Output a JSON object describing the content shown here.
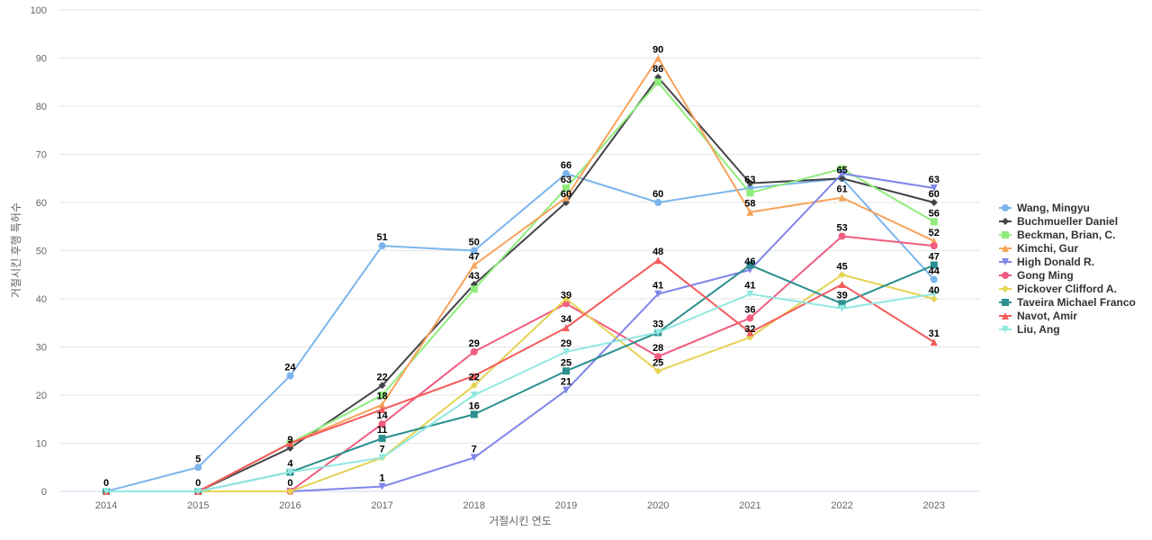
{
  "chart_data": {
    "type": "line",
    "xlabel": "거절시킨 연도",
    "ylabel": "거절시킨 후행 특허수",
    "ylim": [
      0,
      100
    ],
    "yticks": [
      0,
      10,
      20,
      30,
      40,
      50,
      60,
      70,
      80,
      90,
      100
    ],
    "grid": true,
    "legend_position": "right",
    "x": [
      "2014",
      "2015",
      "2016",
      "2017",
      "2018",
      "2019",
      "2020",
      "2021",
      "2022",
      "2023"
    ],
    "series": [
      {
        "name": "Wang, Mingyu",
        "color": "#7cb5ec",
        "marker": "circle",
        "values": [
          0,
          5,
          24,
          51,
          50,
          66,
          60,
          63,
          65,
          44
        ]
      },
      {
        "name": "Buchmueller Daniel",
        "color": "#434348",
        "marker": "diamond",
        "values": [
          0,
          0,
          9,
          22,
          43,
          60,
          86,
          64,
          65,
          60
        ]
      },
      {
        "name": "Beckman, Brian, C.",
        "color": "#90ed7d",
        "marker": "square",
        "values": [
          0,
          0,
          10,
          20,
          42,
          63,
          85,
          62,
          67,
          56
        ]
      },
      {
        "name": "Kimchi, Gur",
        "color": "#f7a35c",
        "marker": "triangle",
        "values": [
          0,
          0,
          10,
          18,
          47,
          61,
          90,
          58,
          61,
          52
        ]
      },
      {
        "name": "High Donald R.",
        "color": "#8085e9",
        "marker": "triangle-down",
        "values": [
          0,
          0,
          0,
          1,
          7,
          21,
          41,
          46,
          66,
          63
        ]
      },
      {
        "name": "Gong Ming",
        "color": "#f15c80",
        "marker": "circle",
        "values": [
          0,
          0,
          0,
          14,
          29,
          39,
          28,
          36,
          53,
          51
        ]
      },
      {
        "name": "Pickover Clifford A.",
        "color": "#e4d354",
        "marker": "diamond",
        "values": [
          0,
          0,
          0,
          7,
          22,
          40,
          25,
          32,
          45,
          40
        ]
      },
      {
        "name": "Taveira Michael Franco",
        "color": "#2b908f",
        "marker": "square",
        "values": [
          0,
          0,
          4,
          11,
          16,
          25,
          33,
          47,
          39,
          47
        ]
      },
      {
        "name": "Navot, Amir",
        "color": "#f45b5b",
        "marker": "triangle",
        "values": [
          0,
          0,
          10,
          17,
          24,
          34,
          48,
          33,
          43,
          31
        ]
      },
      {
        "name": "Liu, Ang",
        "color": "#91e8e1",
        "marker": "triangle-down",
        "values": [
          0,
          0,
          4,
          7,
          20,
          29,
          33,
          41,
          38,
          41
        ]
      }
    ],
    "data_labels": [
      {
        "x": "2014",
        "text": "0",
        "value": 0
      },
      {
        "x": "2015",
        "text": "5",
        "value": 5
      },
      {
        "x": "2015",
        "text": "0",
        "value": 0
      },
      {
        "x": "2016",
        "text": "24",
        "value": 24
      },
      {
        "x": "2016",
        "text": "9",
        "value": 9
      },
      {
        "x": "2016",
        "text": "4",
        "value": 4
      },
      {
        "x": "2016",
        "text": "0",
        "value": 0
      },
      {
        "x": "2017",
        "text": "51",
        "value": 51
      },
      {
        "x": "2017",
        "text": "22",
        "value": 22
      },
      {
        "x": "2017",
        "text": "18",
        "value": 18
      },
      {
        "x": "2017",
        "text": "14",
        "value": 14
      },
      {
        "x": "2017",
        "text": "11",
        "value": 11
      },
      {
        "x": "2017",
        "text": "7",
        "value": 7
      },
      {
        "x": "2017",
        "text": "1",
        "value": 1
      },
      {
        "x": "2018",
        "text": "50",
        "value": 50
      },
      {
        "x": "2018",
        "text": "47",
        "value": 47
      },
      {
        "x": "2018",
        "text": "43",
        "value": 43
      },
      {
        "x": "2018",
        "text": "29",
        "value": 29
      },
      {
        "x": "2018",
        "text": "22",
        "value": 22
      },
      {
        "x": "2018",
        "text": "16",
        "value": 16
      },
      {
        "x": "2018",
        "text": "7",
        "value": 7
      },
      {
        "x": "2019",
        "text": "66",
        "value": 66
      },
      {
        "x": "2019",
        "text": "63",
        "value": 63
      },
      {
        "x": "2019",
        "text": "60",
        "value": 60
      },
      {
        "x": "2019",
        "text": "39",
        "value": 39
      },
      {
        "x": "2019",
        "text": "34",
        "value": 34
      },
      {
        "x": "2019",
        "text": "29",
        "value": 29
      },
      {
        "x": "2019",
        "text": "25",
        "value": 25
      },
      {
        "x": "2019",
        "text": "21",
        "value": 21
      },
      {
        "x": "2020",
        "text": "90",
        "value": 90
      },
      {
        "x": "2020",
        "text": "86",
        "value": 86
      },
      {
        "x": "2020",
        "text": "60",
        "value": 60
      },
      {
        "x": "2020",
        "text": "48",
        "value": 48
      },
      {
        "x": "2020",
        "text": "41",
        "value": 41
      },
      {
        "x": "2020",
        "text": "33",
        "value": 33
      },
      {
        "x": "2020",
        "text": "28",
        "value": 28
      },
      {
        "x": "2020",
        "text": "25",
        "value": 25
      },
      {
        "x": "2021",
        "text": "63",
        "value": 63
      },
      {
        "x": "2021",
        "text": "58",
        "value": 58
      },
      {
        "x": "2021",
        "text": "46",
        "value": 46
      },
      {
        "x": "2021",
        "text": "41",
        "value": 41
      },
      {
        "x": "2021",
        "text": "36",
        "value": 36
      },
      {
        "x": "2021",
        "text": "32",
        "value": 32
      },
      {
        "x": "2022",
        "text": "65",
        "value": 65
      },
      {
        "x": "2022",
        "text": "61",
        "value": 61
      },
      {
        "x": "2022",
        "text": "53",
        "value": 53
      },
      {
        "x": "2022",
        "text": "45",
        "value": 45
      },
      {
        "x": "2022",
        "text": "39",
        "value": 39
      },
      {
        "x": "2023",
        "text": "63",
        "value": 63
      },
      {
        "x": "2023",
        "text": "60",
        "value": 60
      },
      {
        "x": "2023",
        "text": "56",
        "value": 56
      },
      {
        "x": "2023",
        "text": "52",
        "value": 52
      },
      {
        "x": "2023",
        "text": "47",
        "value": 47
      },
      {
        "x": "2023",
        "text": "44",
        "value": 44
      },
      {
        "x": "2023",
        "text": "40",
        "value": 40
      },
      {
        "x": "2023",
        "text": "31",
        "value": 31
      }
    ]
  }
}
